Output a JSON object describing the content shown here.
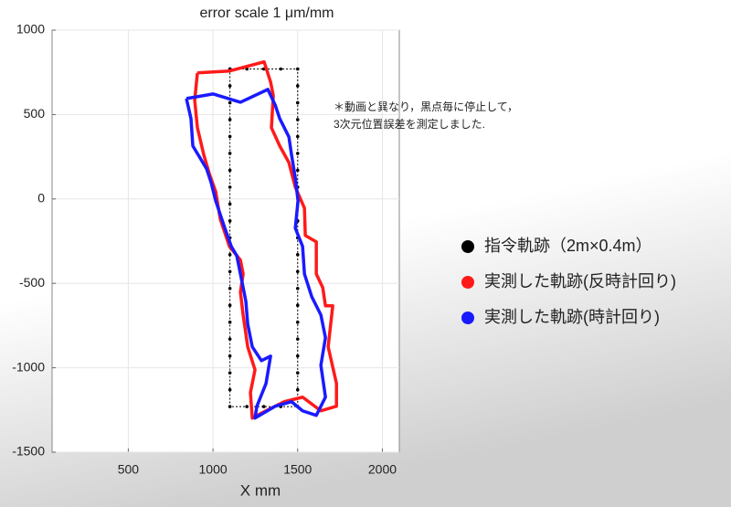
{
  "chart_data": {
    "type": "line",
    "title": "error scale 1 μm/mm",
    "xlabel": "X mm",
    "annotations": [
      "＊動画と異なり，黒点毎に停止して，",
      "3次元位置誤差を測定しました."
    ],
    "xlim": [
      50,
      2100
    ],
    "xticks": [
      500,
      1000,
      1500,
      2000
    ],
    "ylim": [
      -1500,
      1000
    ],
    "yticks": [
      -1500,
      -1000,
      -500,
      0,
      500,
      1000
    ],
    "grid": true,
    "legend": "right",
    "series": [
      {
        "name": "指令軌跡（2m×0.4m）",
        "color": "#000000",
        "markers": true,
        "x": [
          1100,
          1100,
          1100,
          1100,
          1100,
          1100,
          1100,
          1100,
          1100,
          1100,
          1100,
          1100,
          1100,
          1100,
          1100,
          1100,
          1100,
          1100,
          1100,
          1100,
          1100,
          1200,
          1300,
          1400,
          1500,
          1500,
          1500,
          1500,
          1500,
          1500,
          1500,
          1500,
          1500,
          1500,
          1500,
          1500,
          1500,
          1500,
          1500,
          1500,
          1500,
          1500,
          1500,
          1500,
          1500,
          1400,
          1300,
          1200,
          1100
        ],
        "values": [
          770,
          670,
          570,
          470,
          370,
          270,
          170,
          70,
          -30,
          -130,
          -230,
          -330,
          -430,
          -530,
          -630,
          -730,
          -830,
          -930,
          -1030,
          -1130,
          -1230,
          -1230,
          -1230,
          -1230,
          -1230,
          -1130,
          -1030,
          -930,
          -830,
          -730,
          -630,
          -530,
          -430,
          -330,
          -230,
          -130,
          -30,
          70,
          170,
          270,
          370,
          470,
          570,
          670,
          770,
          770,
          770,
          770,
          770
        ]
      },
      {
        "name": "実測した軌跡(反時計回り)",
        "color": "#ff1a1a",
        "markers": false,
        "x": [
          908,
          1097,
          1302,
          1340,
          1356,
          1345,
          1394,
          1448,
          1486,
          1540,
          1545,
          1610,
          1610,
          1648,
          1664,
          1707,
          1680,
          1729,
          1729,
          1637,
          1529,
          1421,
          1313,
          1232,
          1221,
          1248,
          1205,
          1178,
          1162,
          1178,
          1162,
          1097,
          1043,
          1016,
          978,
          946,
          908,
          892,
          908
        ],
        "values": [
          747,
          758,
          812,
          693,
          612,
          422,
          314,
          216,
          70,
          -54,
          -216,
          -254,
          -444,
          -525,
          -633,
          -633,
          -876,
          -1093,
          -1228,
          -1255,
          -1174,
          -1201,
          -1255,
          -1298,
          -1147,
          -1012,
          -876,
          -687,
          -552,
          -444,
          -362,
          -281,
          -119,
          43,
          151,
          260,
          422,
          584,
          747
        ]
      },
      {
        "name": "実測した軌跡(時計回り)",
        "color": "#1a1aff",
        "markers": false,
        "x": [
          843,
          1000,
          1162,
          1324,
          1367,
          1394,
          1448,
          1464,
          1486,
          1502,
          1486,
          1529,
          1540,
          1583,
          1637,
          1664,
          1637,
          1664,
          1610,
          1529,
          1464,
          1367,
          1248,
          1259,
          1313,
          1340,
          1286,
          1232,
          1205,
          1194,
          1162,
          1140,
          1108,
          1070,
          1016,
          989,
          962,
          881,
          870,
          843
        ],
        "values": [
          595,
          622,
          573,
          649,
          557,
          476,
          368,
          260,
          124,
          -11,
          -173,
          -281,
          -444,
          -579,
          -687,
          -822,
          -985,
          -1174,
          -1282,
          -1255,
          -1201,
          -1228,
          -1298,
          -1228,
          -1093,
          -931,
          -958,
          -876,
          -741,
          -606,
          -444,
          -335,
          -281,
          -173,
          -11,
          97,
          179,
          314,
          476,
          595
        ]
      }
    ]
  }
}
